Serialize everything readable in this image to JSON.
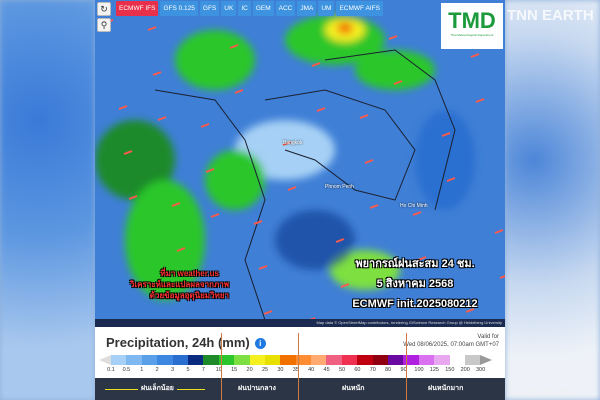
{
  "toolbar": {
    "refresh_icon": "refresh-icon",
    "location_icon": "map-pin-icon",
    "models": [
      {
        "label": "ECMWF IFS",
        "active": true
      },
      {
        "label": "GFS 0.125"
      },
      {
        "label": "GFS"
      },
      {
        "label": "UK"
      },
      {
        "label": "IC"
      },
      {
        "label": "GEM"
      },
      {
        "label": "ACC"
      },
      {
        "label": "JMA"
      },
      {
        "label": "UM"
      },
      {
        "label": "ECMWF AIFS"
      }
    ]
  },
  "map": {
    "cities": [
      "Bangkok",
      "Phnom Penh",
      "Ho Chi Minh"
    ],
    "source_lines": [
      "ที่มา weather.us",
      "วิเคราะห์และแปลผลจากภาพ",
      "ด้วยข้อมูลอุตุนิยมวิทยา"
    ],
    "forecast_lines": [
      "พยากรณ์ฝนสะสม 24 ชม.",
      "5 สิงหาคม 2568",
      "ECMWF init.2025080212"
    ],
    "attribution": "Map data © OpenStreetMap contributors, rendering GIScience Research Group @ Heidelberg University"
  },
  "legend": {
    "title": "Precipitation, 24h (mm)",
    "info_icon": "info-icon",
    "valid_label": "Valid for",
    "valid_time": "Wed 08/06/2025, 07:00am GMT+07",
    "colors": [
      "#a6d0f5",
      "#7fb8f0",
      "#5aa0e8",
      "#3c88e0",
      "#2a6fd0",
      "#0a2a80",
      "#1e8a2a",
      "#2cc62c",
      "#7ee040",
      "#f5f020",
      "#e8e000",
      "#f07000",
      "#ff8c30",
      "#ffaa70",
      "#f06080",
      "#f03050",
      "#c00010",
      "#900010",
      "#6a0aa0",
      "#b020e0",
      "#d870f0",
      "#e8a8f0",
      "#ffffff",
      "#c8c8c8"
    ],
    "ticks": [
      "0.1",
      "0.5",
      "1",
      "2",
      "3",
      "5",
      "7",
      "10",
      "15",
      "20",
      "25",
      "30",
      "35",
      "40",
      "45",
      "50",
      "60",
      "70",
      "80",
      "90",
      "100",
      "125",
      "150",
      "200",
      "300"
    ],
    "categories": [
      "ฝนเล็กน้อย",
      "ฝนปานกลาง",
      "ฝนหนัก",
      "ฝนหนักมาก"
    ]
  },
  "branding": {
    "tmd": "TMD",
    "tmd_sub": "Thai Meteorological Department",
    "tnn": "TNN EARTH",
    "watermark": "กรมอุตุนิยมวิทยา"
  }
}
